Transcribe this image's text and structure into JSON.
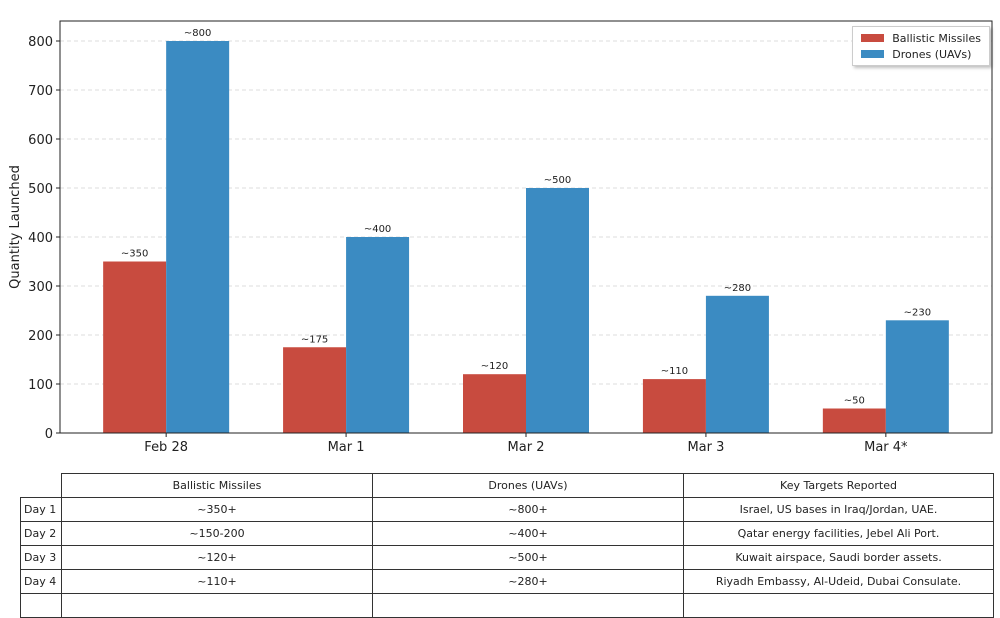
{
  "chart_data": {
    "type": "bar",
    "title": "",
    "xlabel": "",
    "ylabel": "Quantity Launched",
    "categories": [
      "Feb 28",
      "Mar 1",
      "Mar 2",
      "Mar 3",
      "Mar 4*"
    ],
    "series": [
      {
        "name": "Ballistic Missiles",
        "color": "#c84b3f",
        "values": [
          350,
          175,
          120,
          110,
          50
        ],
        "labels": [
          "~350",
          "~175",
          "~120",
          "~110",
          "~50"
        ]
      },
      {
        "name": "Drones (UAVs)",
        "color": "#3b8bc2",
        "values": [
          800,
          400,
          500,
          280,
          230
        ],
        "labels": [
          "~800",
          "~400",
          "~500",
          "~280",
          "~230"
        ]
      }
    ],
    "ylim": [
      0,
      840
    ],
    "yticks": [
      0,
      100,
      200,
      300,
      400,
      500,
      600,
      700,
      800
    ],
    "grid": true,
    "legend_position": "top-right"
  },
  "table": {
    "headers": [
      "",
      "Ballistic Missiles",
      "Drones (UAVs)",
      "Key Targets Reported"
    ],
    "rows": [
      [
        "Day 1",
        "~350+",
        "~800+",
        "Israel, US bases in Iraq/Jordan, UAE."
      ],
      [
        "Day 2",
        "~150-200",
        "~400+",
        "Qatar energy facilities, Jebel Ali Port."
      ],
      [
        "Day 3",
        "~120+",
        "~500+",
        "Kuwait airspace, Saudi border assets."
      ],
      [
        "Day 4",
        "~110+",
        "~280+",
        "Riyadh Embassy, Al-Udeid, Dubai Consulate."
      ],
      [
        "",
        "",
        "",
        ""
      ]
    ]
  }
}
